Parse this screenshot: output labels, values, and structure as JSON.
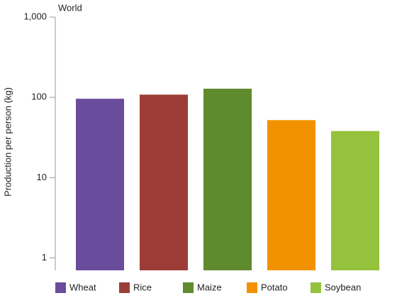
{
  "chart_data": {
    "type": "bar",
    "subtitle": "World",
    "y_label": "Production per person (kg)",
    "categories": [
      "Wheat",
      "Rice",
      "Maize",
      "Potato",
      "Soybean"
    ],
    "values": [
      96,
      108,
      128,
      52,
      38
    ],
    "colors": [
      "#6a4c9c",
      "#9c3d37",
      "#5f8a2e",
      "#f39200",
      "#95c23d"
    ],
    "log_scale": true,
    "ylim": [
      0.7,
      1000
    ],
    "yticks": [
      1,
      10,
      100,
      {
        "value": 1000,
        "label": "1,000"
      }
    ]
  }
}
